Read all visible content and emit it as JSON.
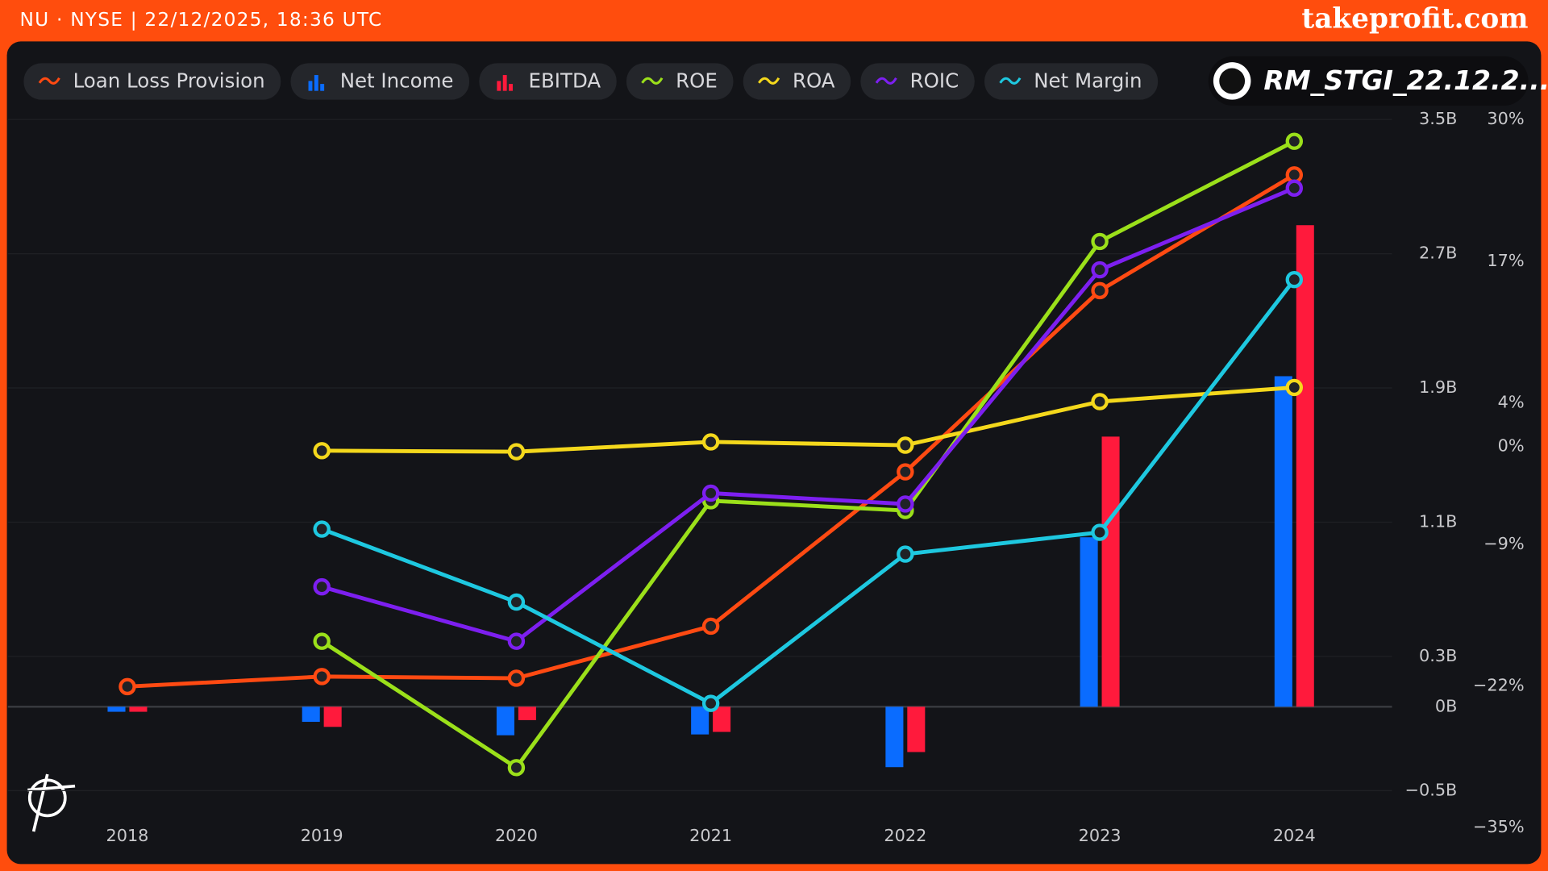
{
  "header": {
    "source": "NU · NYSE | 22/12/2025, 18:36 UTC",
    "brand": "takeprofit.com",
    "author": "RM_STGI_22.12.2..."
  },
  "chart_data": {
    "type": "combo",
    "categories": [
      "2018",
      "2019",
      "2020",
      "2021",
      "2022",
      "2023",
      "2024"
    ],
    "ylim": [
      -0.72,
      3.5
    ],
    "yticks": [
      {
        "value": -0.5,
        "label": "−0.5B"
      },
      {
        "value": 0,
        "label": "0B"
      },
      {
        "value": 0.3,
        "label": "0.3B"
      },
      {
        "value": 1.1,
        "label": "1.1B"
      },
      {
        "value": 1.9,
        "label": "1.9B"
      },
      {
        "value": 2.7,
        "label": "2.7B"
      },
      {
        "value": 3.5,
        "label": "3.5B"
      }
    ],
    "y2lim": [
      -35,
      30
    ],
    "y2ticks": [
      {
        "value": -35,
        "label": "−35%"
      },
      {
        "value": -22,
        "label": "−22%"
      },
      {
        "value": -9,
        "label": "−9%"
      },
      {
        "value": 0,
        "label": "0%"
      },
      {
        "value": 4,
        "label": "4%"
      },
      {
        "value": 17,
        "label": "17%"
      },
      {
        "value": 30,
        "label": "30%"
      }
    ],
    "grid": true,
    "series": [
      {
        "name": "Loan Loss Provision",
        "type": "line",
        "color": "#ff4a12",
        "values": [
          0.12,
          0.18,
          0.17,
          0.48,
          1.4,
          2.48,
          3.17
        ]
      },
      {
        "name": "Net Income",
        "type": "bar",
        "color": "#0a6cff",
        "values": [
          -0.03,
          -0.09,
          -0.17,
          -0.165,
          -0.36,
          1.01,
          1.97
        ]
      },
      {
        "name": "EBITDA",
        "type": "bar",
        "color": "#ff1a3c",
        "values": [
          -0.03,
          -0.12,
          -0.08,
          -0.15,
          -0.27,
          1.61,
          2.87
        ]
      },
      {
        "name": "ROE",
        "type": "line",
        "axis": "y2",
        "color": "#9be01a",
        "values": [
          null,
          -17.9,
          -29.5,
          -5.0,
          -5.9,
          18.8,
          28.0
        ]
      },
      {
        "name": "ROA",
        "type": "line",
        "axis": "y2",
        "color": "#f4d81c",
        "values": [
          null,
          -0.4,
          -0.5,
          0.4,
          0.1,
          4.1,
          5.4
        ]
      },
      {
        "name": "ROIC",
        "type": "line",
        "axis": "y2",
        "color": "#7d1ff0",
        "values": [
          null,
          -12.9,
          -17.9,
          -4.3,
          -5.3,
          16.2,
          23.7
        ]
      },
      {
        "name": "Net Margin",
        "type": "line",
        "axis": "y2",
        "color": "#1ec8e0",
        "values": [
          null,
          -7.6,
          -14.3,
          -23.6,
          -9.9,
          -7.9,
          15.3
        ]
      }
    ]
  }
}
